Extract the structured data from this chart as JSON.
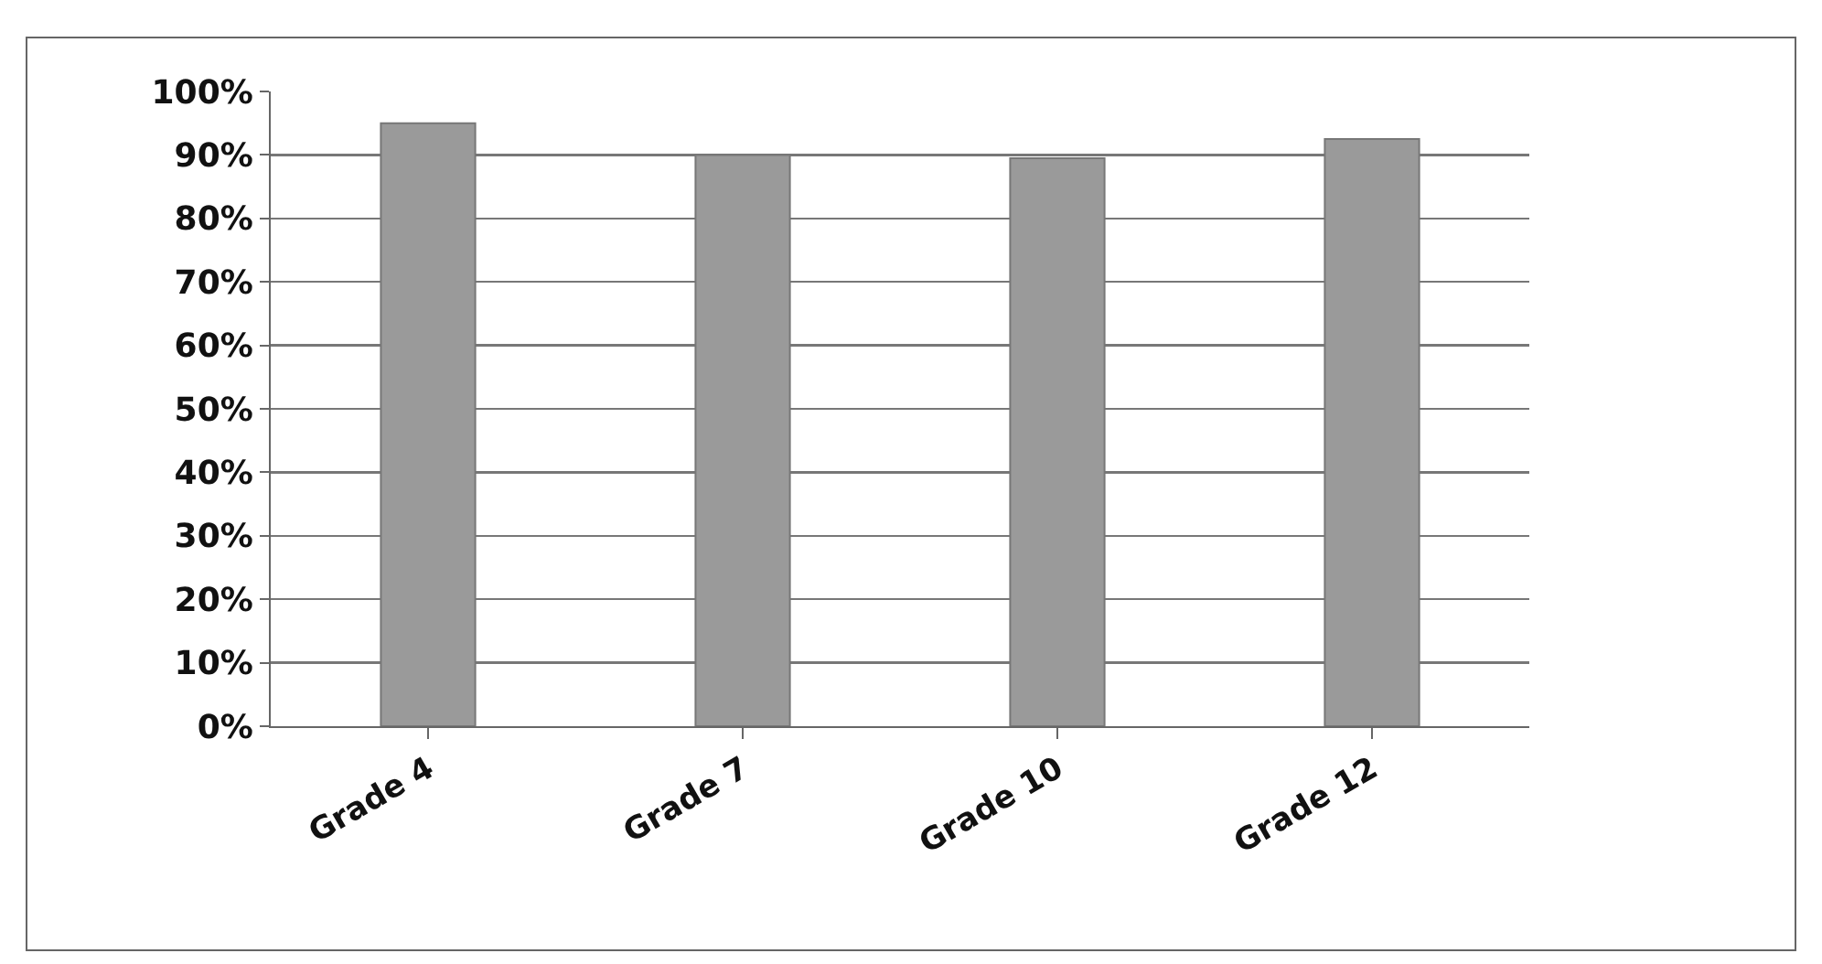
{
  "chart_data": {
    "type": "bar",
    "categories": [
      "Grade 4",
      "Grade 7",
      "Grade 10",
      "Grade 12"
    ],
    "values": [
      95,
      90,
      89.5,
      92.5
    ],
    "color": "#9a9a9a",
    "ylim": [
      0,
      100
    ],
    "yticks": [
      {
        "value": 0,
        "label": "0%"
      },
      {
        "value": 10,
        "label": "10%"
      },
      {
        "value": 20,
        "label": "20%"
      },
      {
        "value": 30,
        "label": "30%"
      },
      {
        "value": 40,
        "label": "40%"
      },
      {
        "value": 50,
        "label": "50%"
      },
      {
        "value": 60,
        "label": "60%"
      },
      {
        "value": 70,
        "label": "70%"
      },
      {
        "value": 80,
        "label": "80%"
      },
      {
        "value": 90,
        "label": "90%"
      },
      {
        "value": 100,
        "label": "100%"
      }
    ],
    "grid": "y",
    "legend": false
  }
}
